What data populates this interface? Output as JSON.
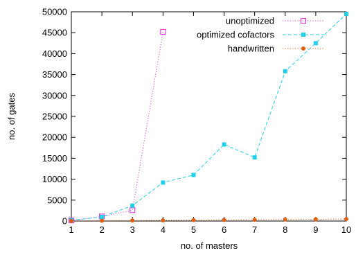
{
  "chart_data": {
    "type": "line",
    "xlabel": "no. of masters",
    "ylabel": "no. of gates",
    "xlim": [
      1,
      10
    ],
    "ylim": [
      0,
      50000
    ],
    "xticks": [
      1,
      2,
      3,
      4,
      5,
      6,
      7,
      8,
      9,
      10
    ],
    "yticks": [
      0,
      5000,
      10000,
      15000,
      20000,
      25000,
      30000,
      35000,
      40000,
      45000,
      50000
    ],
    "grid": false,
    "legend_position": "top-right",
    "series": [
      {
        "name": "unoptimized",
        "color": "#e040e0",
        "marker": "open-square",
        "dash": "dotted",
        "x": [
          1,
          2,
          3,
          4
        ],
        "y": [
          150,
          1100,
          2600,
          45200
        ]
      },
      {
        "name": "optimized cofactors",
        "color": "#20d0e8",
        "marker": "filled-square",
        "dash": "dashed",
        "x": [
          1,
          2,
          3,
          4,
          5,
          6,
          7,
          8,
          9,
          10
        ],
        "y": [
          150,
          1000,
          3700,
          9200,
          11000,
          18300,
          15200,
          35800,
          42500,
          49500
        ]
      },
      {
        "name": "handwritten",
        "color": "#e06010",
        "marker": "filled-circle",
        "dash": "dotted",
        "x": [
          1,
          2,
          3,
          4,
          5,
          6,
          7,
          8,
          9,
          10
        ],
        "y": [
          30,
          80,
          120,
          170,
          220,
          270,
          320,
          370,
          420,
          470
        ]
      }
    ]
  }
}
